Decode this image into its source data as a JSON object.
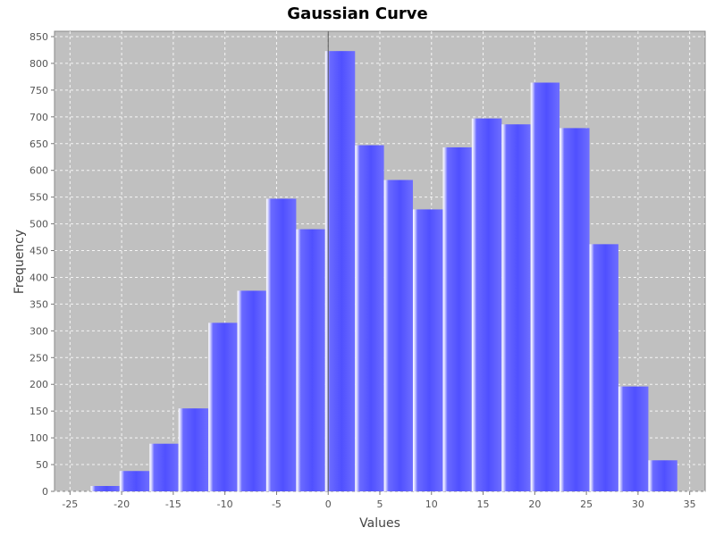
{
  "chart_data": {
    "type": "bar",
    "title": "Gaussian Curve",
    "xlabel": "Values",
    "ylabel": "Frequency",
    "xlim": [
      -26.5,
      36.5
    ],
    "ylim": [
      0,
      860
    ],
    "x_ticks": [
      -25,
      -20,
      -15,
      -10,
      -5,
      0,
      5,
      10,
      15,
      20,
      25,
      30,
      35
    ],
    "y_ticks": [
      0,
      50,
      100,
      150,
      200,
      250,
      300,
      350,
      400,
      450,
      500,
      550,
      600,
      650,
      700,
      750,
      800,
      850
    ],
    "grid": true,
    "legend": false,
    "bar_color": "#5b5bff",
    "background_color": "#c0c0c0",
    "series": [
      {
        "bins": [
          {
            "x0": -23.0,
            "x1": -20.2,
            "value": 10
          },
          {
            "x0": -20.2,
            "x1": -17.3,
            "value": 38
          },
          {
            "x0": -17.3,
            "x1": -14.5,
            "value": 89
          },
          {
            "x0": -14.5,
            "x1": -11.6,
            "value": 155
          },
          {
            "x0": -11.6,
            "x1": -8.8,
            "value": 315
          },
          {
            "x0": -8.8,
            "x1": -6.0,
            "value": 375
          },
          {
            "x0": -6.0,
            "x1": -3.1,
            "value": 547
          },
          {
            "x0": -3.1,
            "x1": -0.3,
            "value": 490
          },
          {
            "x0": -0.3,
            "x1": 2.6,
            "value": 823
          },
          {
            "x0": 2.6,
            "x1": 5.4,
            "value": 647
          },
          {
            "x0": 5.4,
            "x1": 8.2,
            "value": 582
          },
          {
            "x0": 8.2,
            "x1": 11.1,
            "value": 527
          },
          {
            "x0": 11.1,
            "x1": 13.9,
            "value": 643
          },
          {
            "x0": 13.9,
            "x1": 16.8,
            "value": 697
          },
          {
            "x0": 16.8,
            "x1": 19.6,
            "value": 686
          },
          {
            "x0": 19.6,
            "x1": 22.4,
            "value": 764
          },
          {
            "x0": 22.4,
            "x1": 25.3,
            "value": 679
          },
          {
            "x0": 25.3,
            "x1": 28.1,
            "value": 462
          },
          {
            "x0": 28.1,
            "x1": 31.0,
            "value": 196
          },
          {
            "x0": 31.0,
            "x1": 33.8,
            "value": 58
          }
        ]
      }
    ]
  }
}
